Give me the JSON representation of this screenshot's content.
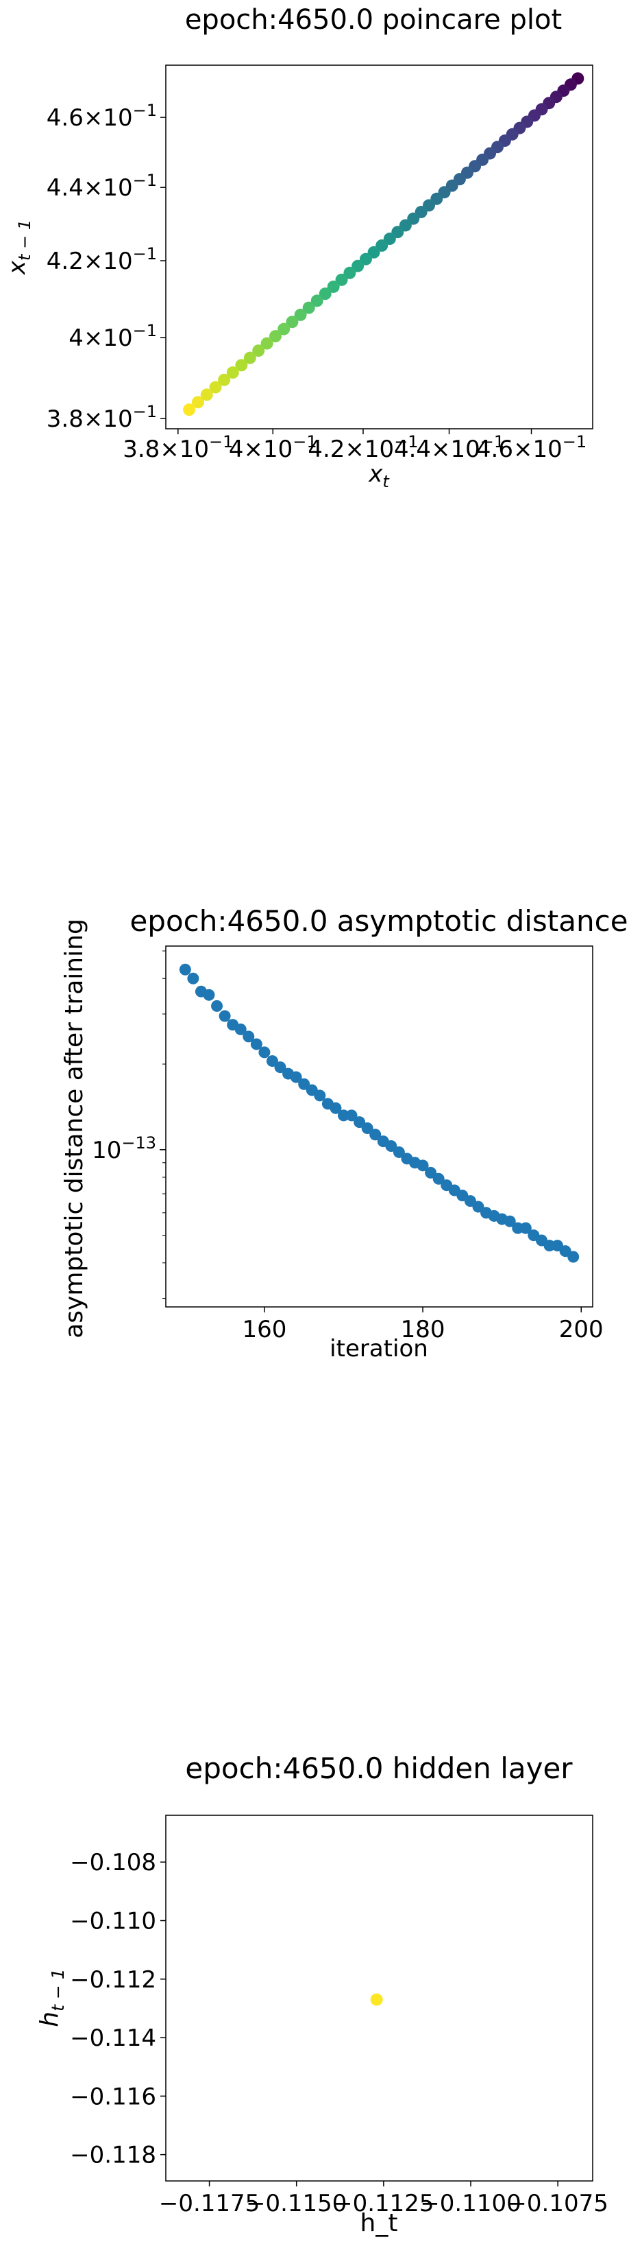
{
  "chart_data": [
    {
      "type": "scatter",
      "title": "epoch:4650.0 poincare plot",
      "xlabel": "x_t",
      "ylabel": "x_{t-1}",
      "xscale": "log",
      "yscale": "log",
      "xlim": [
        0.3775,
        0.4755
      ],
      "ylim": [
        0.3775,
        0.4755
      ],
      "xticks": [
        0.38,
        0.4,
        0.42,
        0.44,
        0.46
      ],
      "xticklabels": [
        {
          "m": "3.8",
          "e": "−1"
        },
        {
          "m": "4",
          "e": "−1"
        },
        {
          "m": "4.2",
          "e": "−1"
        },
        {
          "m": "4.4",
          "e": "−1"
        },
        {
          "m": "4.6",
          "e": "−1"
        }
      ],
      "yticks": [
        0.38,
        0.4,
        0.42,
        0.44,
        0.46
      ],
      "yticklabels": [
        {
          "m": "3.8",
          "e": "−1"
        },
        {
          "m": "4",
          "e": "−1"
        },
        {
          "m": "4.2",
          "e": "−1"
        },
        {
          "m": "4.4",
          "e": "−1"
        },
        {
          "m": "4.6",
          "e": "−1"
        }
      ],
      "colormap": "viridis",
      "color_order": "first point dark purple, last point yellow",
      "points": {
        "x_start": 0.4717,
        "x_end": 0.3823,
        "y_start": 0.4715,
        "y_end": 0.3821,
        "count": 50
      }
    },
    {
      "type": "scatter",
      "title": "epoch:4650.0 asymptotic distance",
      "xlabel": "iteration",
      "ylabel": "asymptotic distance after training",
      "yscale": "log",
      "xlim": [
        147.55,
        201.45
      ],
      "ylim": [
        2.8e-14,
        5.2e-13
      ],
      "xticks": [
        160,
        180,
        200
      ],
      "yticks": [
        {
          "value": 1e-13,
          "m": "10",
          "e": "−13"
        }
      ],
      "color": "#1f77b4",
      "x": [
        150,
        151,
        152,
        153,
        154,
        155,
        156,
        157,
        158,
        159,
        160,
        161,
        162,
        163,
        164,
        165,
        166,
        167,
        168,
        169,
        170,
        171,
        172,
        173,
        174,
        175,
        176,
        177,
        178,
        179,
        180,
        181,
        182,
        183,
        184,
        185,
        186,
        187,
        188,
        189,
        190,
        191,
        192,
        193,
        194,
        195,
        196,
        197,
        198,
        199
      ],
      "y": [
        4.3e-13,
        4e-13,
        3.6e-13,
        3.5e-13,
        3.2e-13,
        2.95e-13,
        2.75e-13,
        2.65e-13,
        2.5e-13,
        2.35e-13,
        2.2e-13,
        2.05e-13,
        1.95e-13,
        1.85e-13,
        1.8e-13,
        1.7e-13,
        1.62e-13,
        1.55e-13,
        1.45e-13,
        1.4e-13,
        1.32e-13,
        1.32e-13,
        1.25e-13,
        1.19e-13,
        1.13e-13,
        1.07e-13,
        1.03e-13,
        9.8e-14,
        9.3e-14,
        9e-14,
        8.8e-14,
        8.3e-14,
        7.9e-14,
        7.5e-14,
        7.2e-14,
        6.9e-14,
        6.6e-14,
        6.3e-14,
        6e-14,
        5.85e-14,
        5.7e-14,
        5.6e-14,
        5.3e-14,
        5.3e-14,
        5e-14,
        4.8e-14,
        4.6e-14,
        4.6e-14,
        4.4e-14,
        4.2e-14
      ]
    },
    {
      "type": "scatter",
      "title": "epoch:4650.0 hidden layer",
      "xlabel": "h_t",
      "ylabel": "h_{t-1}",
      "xlim": [
        -0.11875,
        -0.1065
      ],
      "ylim": [
        -0.1189,
        -0.1064
      ],
      "xticks": [
        -0.1175,
        -0.115,
        -0.1125,
        -0.11,
        -0.1075
      ],
      "xticklabels": [
        "−0.1175",
        "−0.1150",
        "−0.1125",
        "−0.1100",
        "−0.1075"
      ],
      "yticks": [
        -0.108,
        -0.11,
        -0.112,
        -0.114,
        -0.116,
        -0.118
      ],
      "yticklabels": [
        "−0.108",
        "−0.110",
        "−0.112",
        "−0.114",
        "−0.116",
        "−0.118"
      ],
      "color": "#fde725",
      "x": [
        -0.1127
      ],
      "y": [
        -0.1127
      ]
    }
  ]
}
